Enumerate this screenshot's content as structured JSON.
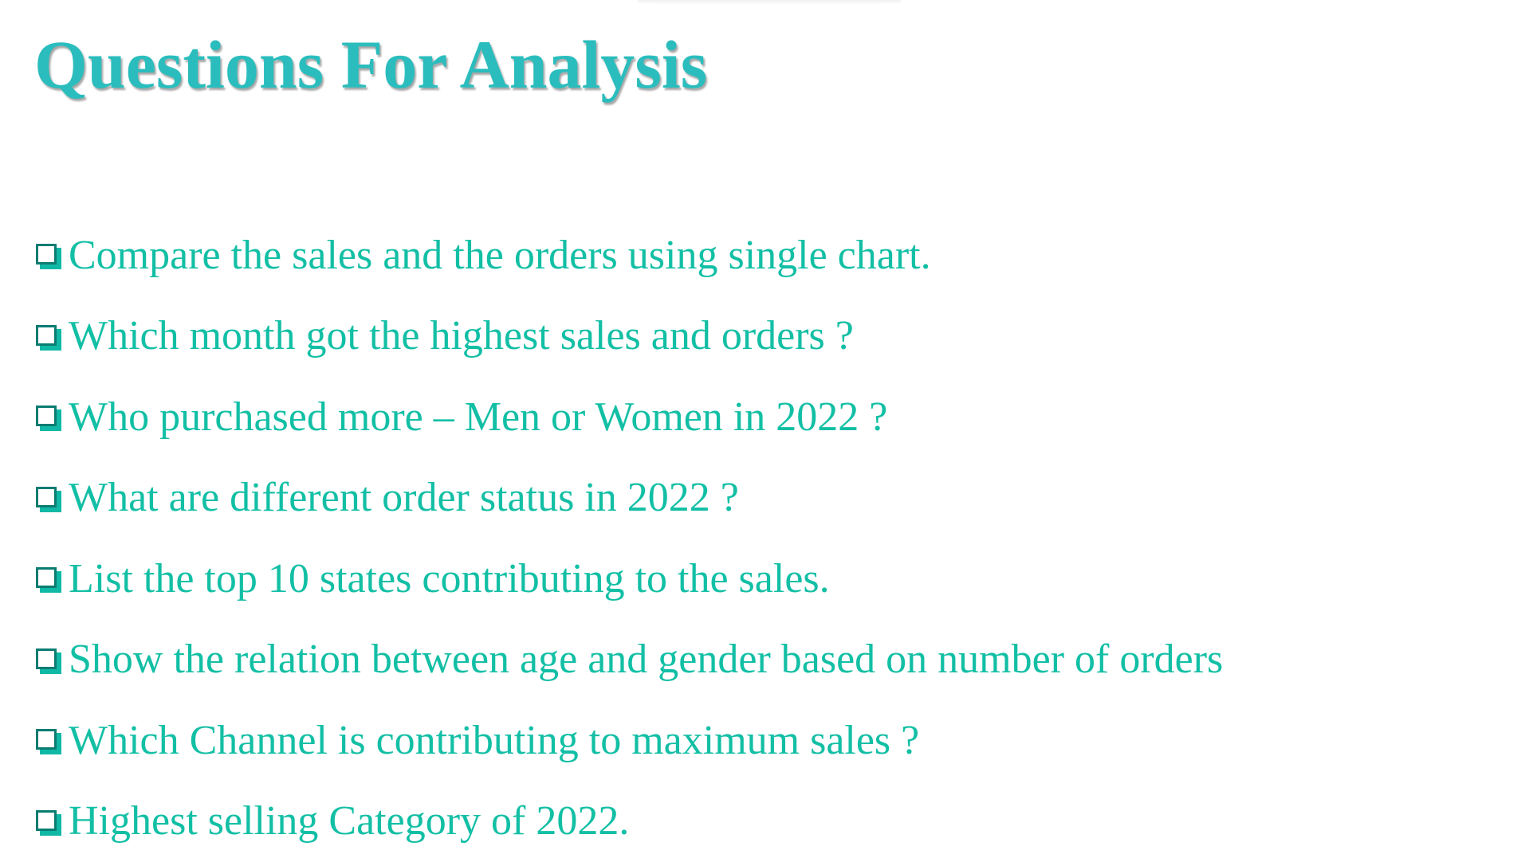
{
  "slide": {
    "title": "Questions For Analysis",
    "questions": [
      {
        "text": "Compare the sales and the orders using single chart."
      },
      {
        "text": "Which month got the highest sales and orders ?"
      },
      {
        "text": "Who purchased more – Men or Women in 2022 ?"
      },
      {
        "text": "What are different order status in 2022 ?"
      },
      {
        "text": "List the top 10 states contributing to the sales."
      },
      {
        "text": "Show the relation between age and gender based on number of orders"
      },
      {
        "text": "Which Channel is contributing to maximum sales ?"
      },
      {
        "text": "Highest selling Category of 2022."
      }
    ],
    "bullet_icon": "square-checkbox-icon",
    "colors": {
      "title": "#2bbdbd",
      "question_text": "#12bfa5",
      "bullet_border": "#0a7c72",
      "bullet_shadow": "#10b9a5"
    }
  }
}
